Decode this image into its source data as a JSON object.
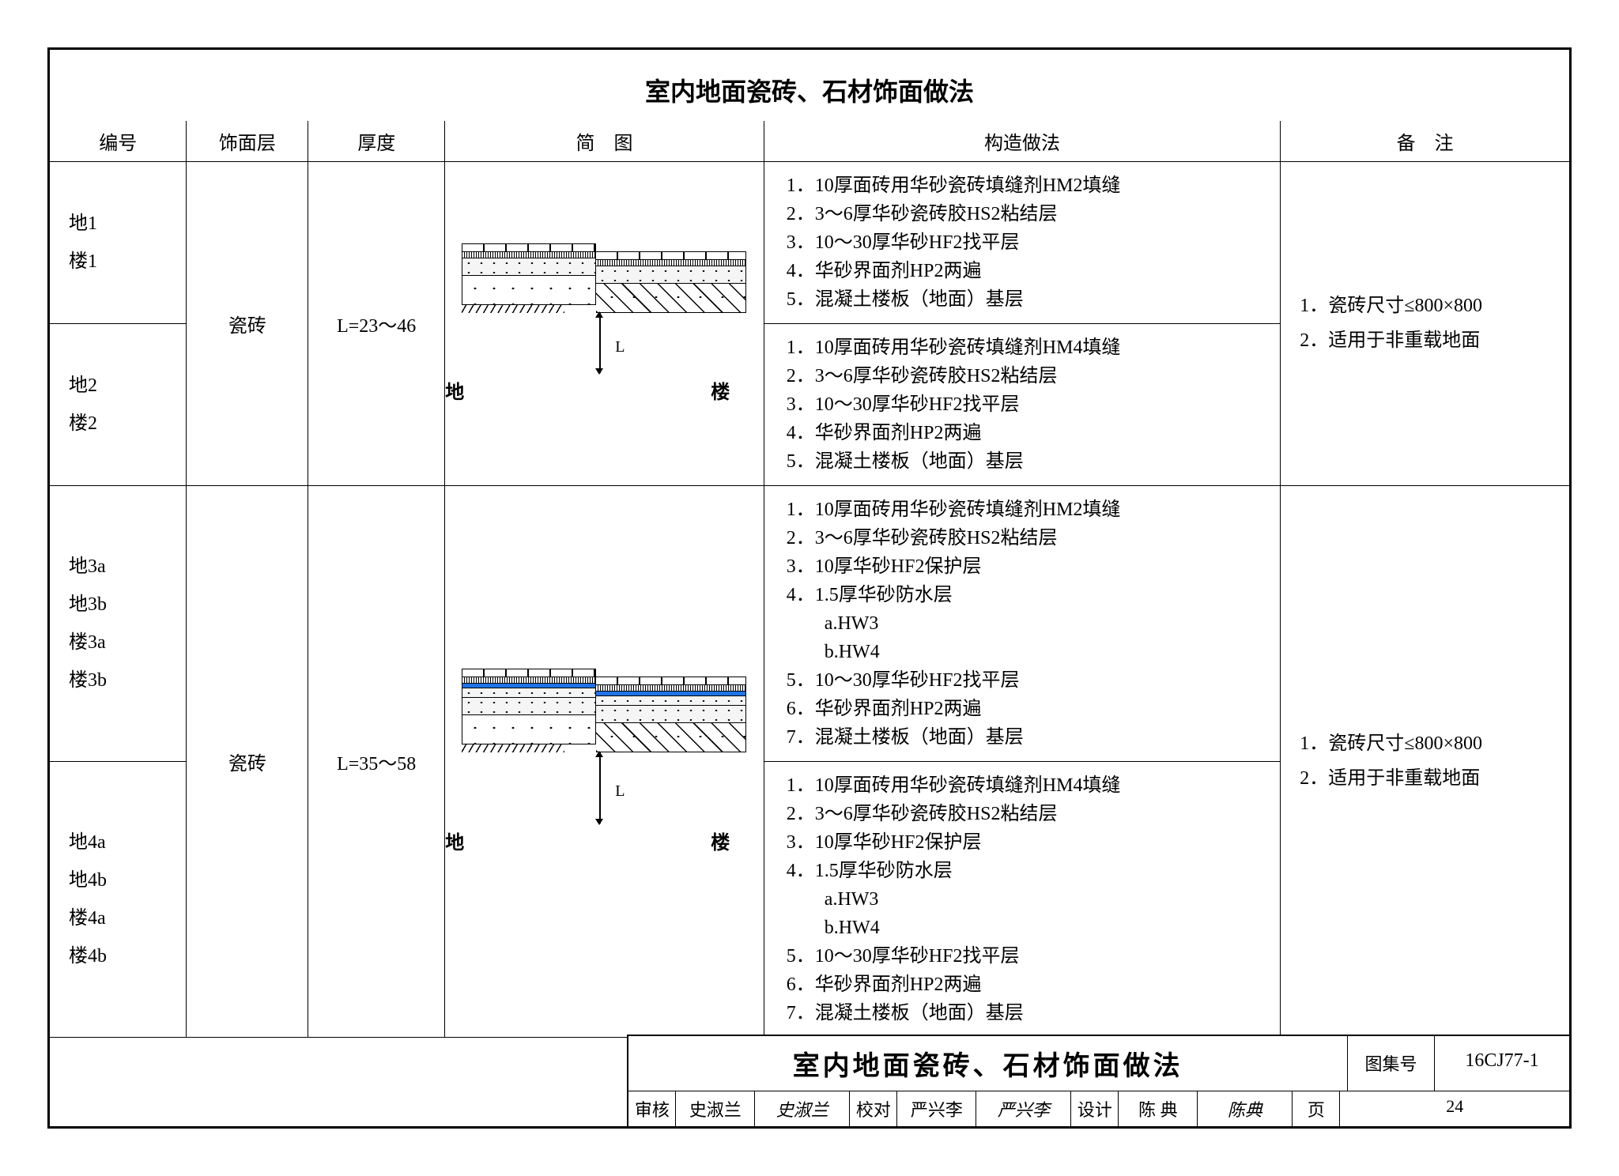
{
  "page_title": "室内地面瓷砖、石材饰面做法",
  "columns": {
    "code": "编号",
    "layer": "饰面层",
    "thick": "厚度",
    "diagram": "简　图",
    "construction": "构造做法",
    "note": "备　注"
  },
  "groups": [
    {
      "layer": "瓷砖",
      "thickness": "L=23～46",
      "diagram": {
        "type": "floor_section",
        "has_waterproof": false,
        "label_left": "地",
        "label_right": "楼",
        "dim_label": "L"
      },
      "notes": [
        "1．瓷砖尺寸≤800×800",
        "2．适用于非重载地面"
      ],
      "rows": [
        {
          "codes": [
            "地1",
            "楼1"
          ],
          "steps": [
            "1．10厚面砖用华砂瓷砖填缝剂HM2填缝",
            "2．3～6厚华砂瓷砖胶HS2粘结层",
            "3．10～30厚华砂HF2找平层",
            "4．华砂界面剂HP2两遍",
            "5．混凝土楼板（地面）基层"
          ]
        },
        {
          "codes": [
            "地2",
            "楼2"
          ],
          "steps": [
            "1．10厚面砖用华砂瓷砖填缝剂HM4填缝",
            "2．3～6厚华砂瓷砖胶HS2粘结层",
            "3．10～30厚华砂HF2找平层",
            "4．华砂界面剂HP2两遍",
            "5．混凝土楼板（地面）基层"
          ]
        }
      ]
    },
    {
      "layer": "瓷砖",
      "thickness": "L=35～58",
      "diagram": {
        "type": "floor_section",
        "has_waterproof": true,
        "label_left": "地",
        "label_right": "楼",
        "dim_label": "L"
      },
      "notes": [
        "1．瓷砖尺寸≤800×800",
        "2．适用于非重载地面"
      ],
      "rows": [
        {
          "codes": [
            "地3a",
            "地3b",
            "楼3a",
            "楼3b"
          ],
          "steps": [
            "1．10厚面砖用华砂瓷砖填缝剂HM2填缝",
            "2．3～6厚华砂瓷砖胶HS2粘结层",
            "3．10厚华砂HF2保护层",
            "4．1.5厚华砂防水层",
            "a.HW3",
            "b.HW4",
            "5．10～30厚华砂HF2找平层",
            "6．华砂界面剂HP2两遍",
            "7．混凝土楼板（地面）基层"
          ]
        },
        {
          "codes": [
            "地4a",
            "地4b",
            "楼4a",
            "楼4b"
          ],
          "steps": [
            "1．10厚面砖用华砂瓷砖填缝剂HM4填缝",
            "2．3～6厚华砂瓷砖胶HS2粘结层",
            "3．10厚华砂HF2保护层",
            "4．1.5厚华砂防水层",
            "a.HW3",
            "b.HW4",
            "5．10～30厚华砂HF2找平层",
            "6．华砂界面剂HP2两遍",
            "7．混凝土楼板（地面）基层"
          ]
        }
      ]
    }
  ],
  "title_block": {
    "title": "室内地面瓷砖、石材饰面做法",
    "atlas_key": "图集号",
    "atlas_val": "16CJ77-1",
    "page_key": "页",
    "page_val": "24",
    "approvals": [
      {
        "k": "审核",
        "name": "史淑兰",
        "sig": "史淑兰"
      },
      {
        "k": "校对",
        "name": "严兴李",
        "sig": "严兴李"
      },
      {
        "k": "设计",
        "name": "陈 典",
        "sig": "陈典"
      }
    ]
  },
  "styling": {
    "border_color": "#000000",
    "background_color": "#ffffff",
    "waterproof_color": "#1e73e6",
    "font_family": "SimSun",
    "title_fontsize_pt": 24,
    "body_fontsize_pt": 18
  }
}
